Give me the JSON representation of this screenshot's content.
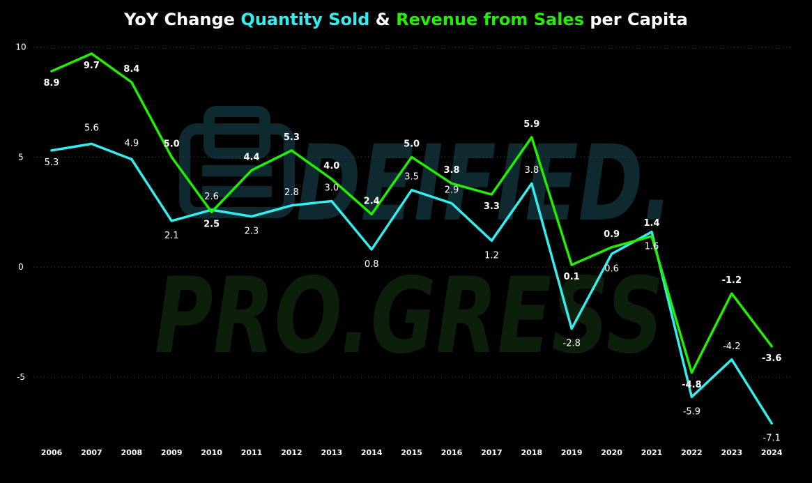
{
  "title": {
    "part1": "YoY Change ",
    "part2": "Quantity Sold",
    "part3": " & ",
    "part4": "Revenue from Sales",
    "part5": " per Capita"
  },
  "watermark": {
    "line1": "DEIFIED.",
    "line2": "PRO.GRESS"
  },
  "colors": {
    "background": "#000000",
    "quantity": "#33eeee",
    "revenue": "#22ee00",
    "text": "#ffffff",
    "grid": "#444444"
  },
  "chart_data": {
    "type": "line",
    "title": "YoY Change Quantity Sold & Revenue from Sales per Capita",
    "x": [
      "2006",
      "2007",
      "2008",
      "2009",
      "2010",
      "2011",
      "2012",
      "2013",
      "2014",
      "2015",
      "2016",
      "2017",
      "2018",
      "2019",
      "2020",
      "2021",
      "2022",
      "2023",
      "2024"
    ],
    "ylim": [
      -7.5,
      10.3
    ],
    "yticks": [
      -5,
      0,
      5,
      10
    ],
    "grid": "horizontal dotted",
    "legend": "in title",
    "series": [
      {
        "name": "Quantity Sold",
        "color": "#33eeee",
        "values": [
          5.3,
          5.6,
          4.9,
          2.1,
          2.6,
          2.3,
          2.8,
          3.0,
          0.8,
          3.5,
          2.9,
          1.2,
          3.8,
          -2.8,
          0.6,
          1.6,
          -5.9,
          -4.2,
          -7.1
        ],
        "labels": [
          "5.3",
          "5.6",
          "4.9",
          "2.1",
          "2.6",
          "2.3",
          "2.8",
          "3.0",
          "0.8",
          "3.5",
          "2.9",
          "1.2",
          "3.8",
          "-2.8",
          "0.6",
          "1.6",
          "-5.9",
          "-4.2",
          "-7.1"
        ]
      },
      {
        "name": "Revenue from Sales",
        "color": "#22ee00",
        "values": [
          8.9,
          9.7,
          8.4,
          5.0,
          2.5,
          4.4,
          5.3,
          4.0,
          2.4,
          5.0,
          3.8,
          3.3,
          5.9,
          0.1,
          0.9,
          1.4,
          -4.8,
          -1.2,
          -3.6
        ],
        "labels": [
          "8.9",
          "9.7",
          "8.4",
          "5.0",
          "2.5",
          "4.4",
          "5.3",
          "4.0",
          "2.4",
          "5.0",
          "3.8",
          "3.3",
          "5.9",
          "0.1",
          "0.9",
          "1.4",
          "-4.8",
          "-1.2",
          "-3.6"
        ]
      }
    ]
  }
}
